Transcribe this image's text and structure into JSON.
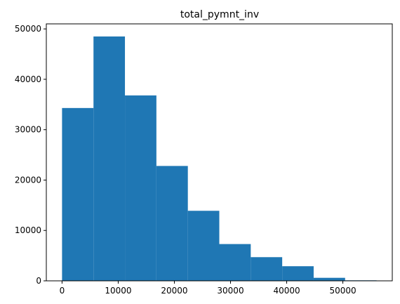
{
  "chart_data": {
    "type": "bar",
    "title": "total_pymnt_inv",
    "xlabel": "",
    "ylabel": "",
    "bar_color": "#1f77b4",
    "bins": [
      {
        "start": 0,
        "end": 5600,
        "count": 34300
      },
      {
        "start": 5600,
        "end": 11200,
        "count": 48500
      },
      {
        "start": 11200,
        "end": 16800,
        "count": 36800
      },
      {
        "start": 16800,
        "end": 22400,
        "count": 22800
      },
      {
        "start": 22400,
        "end": 28000,
        "count": 13900
      },
      {
        "start": 28000,
        "end": 33600,
        "count": 7300
      },
      {
        "start": 33600,
        "end": 39200,
        "count": 4700
      },
      {
        "start": 39200,
        "end": 44800,
        "count": 2900
      },
      {
        "start": 44800,
        "end": 50400,
        "count": 600
      },
      {
        "start": 50400,
        "end": 56000,
        "count": 100
      }
    ],
    "xlim": [
      -2800,
      58800
    ],
    "ylim": [
      0,
      51000
    ],
    "xticks": [
      0,
      10000,
      20000,
      30000,
      40000,
      50000
    ],
    "xtick_labels": [
      "0",
      "10000",
      "20000",
      "30000",
      "40000",
      "50000"
    ],
    "yticks": [
      0,
      10000,
      20000,
      30000,
      40000,
      50000
    ],
    "ytick_labels": [
      "0",
      "10000",
      "20000",
      "30000",
      "40000",
      "50000"
    ],
    "grid": false,
    "legend": "none"
  }
}
